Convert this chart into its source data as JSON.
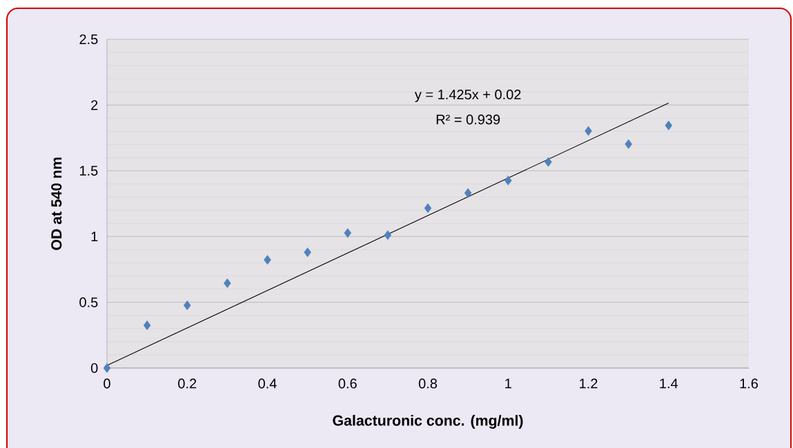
{
  "chart_data": {
    "type": "scatter",
    "xlabel": "Galacturonic conc. (mg/ml)",
    "ylabel": "OD at 540 nm",
    "xlim": [
      0,
      1.6
    ],
    "ylim": [
      0,
      2.5
    ],
    "xticks": [
      0,
      0.2,
      0.4,
      0.6,
      0.8,
      1,
      1.2,
      1.4,
      1.6
    ],
    "yticks": [
      0,
      0.5,
      1,
      1.5,
      2,
      2.5
    ],
    "grid": "y",
    "annotations": [
      "y = 1.425x + 0.02",
      "R² = 0.939"
    ],
    "series": [
      {
        "marker": "diamond",
        "color": "#4f81bd",
        "x": [
          0,
          0.1,
          0.2,
          0.3,
          0.4,
          0.5,
          0.6,
          0.7,
          0.8,
          0.9,
          1.0,
          1.1,
          1.2,
          1.3,
          1.4
        ],
        "values": [
          0,
          0.325,
          0.477,
          0.645,
          0.823,
          0.88,
          1.027,
          1.011,
          1.216,
          1.331,
          1.426,
          1.567,
          1.803,
          1.703,
          1.845
        ]
      },
      {
        "type": "line",
        "color": "#000000",
        "x": [
          0,
          1.4
        ],
        "values": [
          0.02,
          2.015
        ]
      }
    ]
  }
}
